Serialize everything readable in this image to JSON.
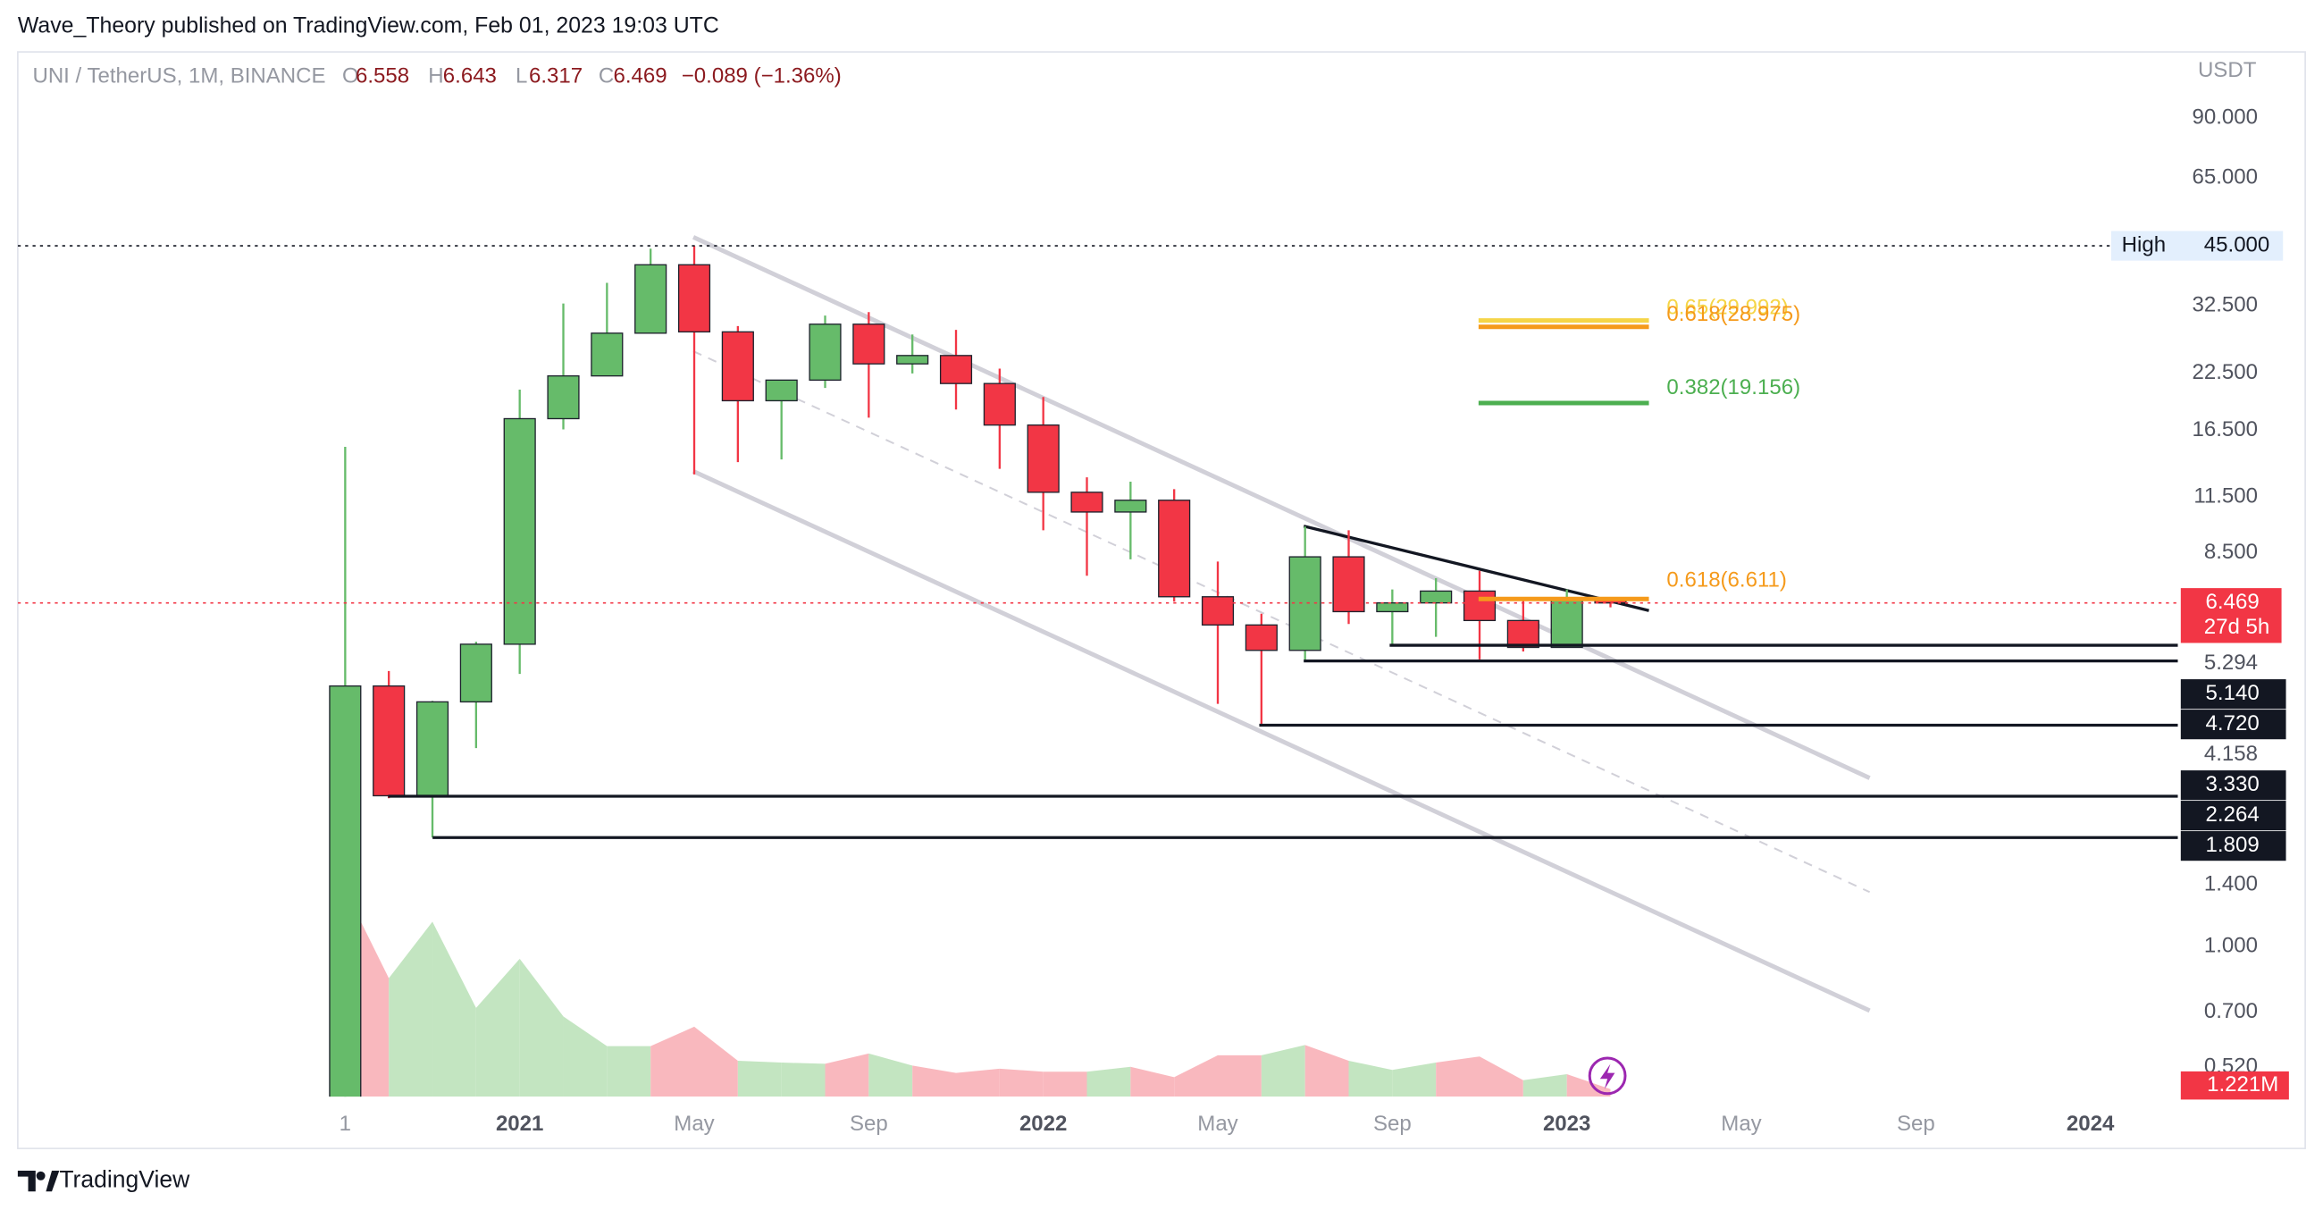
{
  "chart_data": {
    "type": "candlestick",
    "published": "Wave_Theory published on TradingView.com, Feb 01, 2023 19:03 UTC",
    "symbol": "UNI / TetherUS, 1M, BINANCE",
    "ohlc_labels": [
      "O",
      "H",
      "L",
      "C"
    ],
    "last_change": "−0.089 (−1.36%)",
    "unit": "USDT",
    "brand": "TradingView",
    "categories": [
      "1",
      null,
      null,
      null,
      "2021",
      null,
      null,
      null,
      "May",
      null,
      null,
      null,
      "Sep",
      null,
      null,
      null,
      "2022",
      null,
      null,
      null,
      "May",
      null,
      null,
      null,
      "Sep",
      null,
      null,
      null,
      "2023",
      null,
      null,
      null,
      "May",
      null,
      null,
      null,
      "Sep",
      null,
      null,
      null,
      "2024",
      null
    ],
    "open": [
      0.44,
      4.12,
      2.27,
      3.78,
      5.17,
      17.6,
      22.2,
      28.0,
      40.6,
      28.2,
      19.4,
      21.7,
      29.4,
      23.7,
      24.8,
      21.3,
      17.0,
      11.8,
      10.6,
      11.3,
      6.69,
      5.74,
      5.0,
      8.31,
      6.17,
      6.47,
      6.9,
      5.88,
      5.08,
      6.558,
      null,
      null,
      null,
      null,
      null,
      null,
      null,
      null,
      null,
      null,
      null,
      null
    ],
    "high": [
      15.1,
      4.47,
      3.8,
      5.24,
      20.6,
      32.9,
      36.8,
      44.3,
      44.97,
      29.1,
      21.7,
      30.8,
      31.4,
      27.8,
      28.5,
      23.1,
      19.8,
      12.8,
      12.5,
      12.0,
      8.1,
      6.1,
      9.8,
      9.6,
      6.96,
      7.4,
      7.7,
      6.6,
      6.96,
      6.643,
      null,
      null,
      null,
      null,
      null,
      null,
      null,
      null,
      null,
      null,
      null,
      null
    ],
    "low": [
      0.44,
      2.24,
      1.809,
      2.94,
      4.4,
      16.6,
      22.2,
      28.0,
      13.0,
      13.9,
      14.1,
      20.8,
      17.7,
      22.5,
      18.5,
      13.4,
      9.6,
      7.5,
      8.2,
      6.52,
      3.74,
      3.33,
      4.72,
      5.77,
      5.14,
      5.38,
      4.76,
      4.97,
      5.08,
      6.317,
      null,
      null,
      null,
      null,
      null,
      null,
      null,
      null,
      null,
      null,
      null,
      null
    ],
    "close": [
      4.12,
      2.27,
      3.78,
      5.17,
      17.6,
      22.2,
      28.0,
      40.6,
      28.2,
      19.4,
      21.7,
      29.4,
      23.7,
      24.8,
      21.3,
      17.0,
      11.8,
      10.6,
      11.3,
      6.69,
      5.74,
      5.0,
      8.31,
      6.17,
      6.47,
      6.9,
      5.88,
      5.08,
      6.58,
      6.469,
      null,
      null,
      null,
      null,
      null,
      null,
      null,
      null,
      null,
      null,
      null,
      null
    ],
    "up_color": "#66bb6a",
    "down_color": "#f23645",
    "volume": {
      "values": [
        34,
        19.5,
        28.8,
        14.6,
        22.7,
        13.2,
        8.3,
        8.3,
        11.5,
        5.9,
        5.6,
        5.4,
        7.1,
        5.1,
        3.9,
        4.6,
        4.1,
        4.1,
        4.9,
        3.2,
        6.8,
        6.8,
        8.5,
        5.9,
        4.4,
        5.6,
        6.6,
        2.7,
        3.7,
        1.221,
        null,
        null,
        null,
        null,
        null,
        null,
        null,
        null,
        null,
        null,
        null,
        null
      ],
      "value_labels": [
        null,
        null,
        null,
        null,
        null,
        null,
        null,
        null,
        null,
        null,
        null,
        null,
        null,
        null,
        null,
        null,
        null,
        null,
        null,
        null,
        null,
        null,
        null,
        null,
        null,
        null,
        null,
        null,
        null,
        "1.221M",
        null,
        null,
        null,
        null,
        null,
        null,
        null,
        null,
        null,
        null,
        null,
        null
      ],
      "up_color": "#c3e5c1",
      "down_color": "#f9b8be",
      "ylim": [
        0,
        172
      ]
    },
    "log_y": true,
    "ylim": [
      0.443,
      129
    ],
    "yticks": [
      {
        "value": 90,
        "label": "90.000"
      },
      {
        "value": 65,
        "label": "65.000"
      },
      {
        "value": 32.5,
        "label": "32.500"
      },
      {
        "value": 22.5,
        "label": "22.500"
      },
      {
        "value": 16.5,
        "label": "16.500"
      },
      {
        "value": 11.5,
        "label": "11.500"
      },
      {
        "value": 8.5,
        "label": "8.500"
      },
      {
        "value": 5.294,
        "label": "5.294"
      },
      {
        "value": 4.158,
        "label": "4.158"
      },
      {
        "value": 1.4,
        "label": "1.400"
      },
      {
        "value": 1.0,
        "label": "1.000"
      },
      {
        "value": 0.7,
        "label": "0.700"
      },
      {
        "value": 0.52,
        "label": "0.520"
      }
    ],
    "high_line": {
      "label": "High",
      "value": 45,
      "value_label": "45.000"
    },
    "countdown": "27d 5h",
    "price_lines": [
      {
        "value": 5.14,
        "label": "5.140"
      },
      {
        "value": 4.72,
        "label": "4.720"
      },
      {
        "value": 3.33,
        "label": "3.330"
      },
      {
        "value": 2.264,
        "label": "2.264"
      },
      {
        "value": 1.809,
        "label": "1.809"
      }
    ],
    "fib_levels": [
      {
        "label": "0.65(29.992)",
        "value": 29.992,
        "color": "#f5d547"
      },
      {
        "label": "0.618(28.975)",
        "value": 28.975,
        "color": "#f59a1b"
      },
      {
        "label": "0.382(19.156)",
        "value": 19.156,
        "color": "#4caf50"
      },
      {
        "label": "0.618(6.611)",
        "value": 6.611,
        "color": "#f59a1b"
      }
    ]
  }
}
